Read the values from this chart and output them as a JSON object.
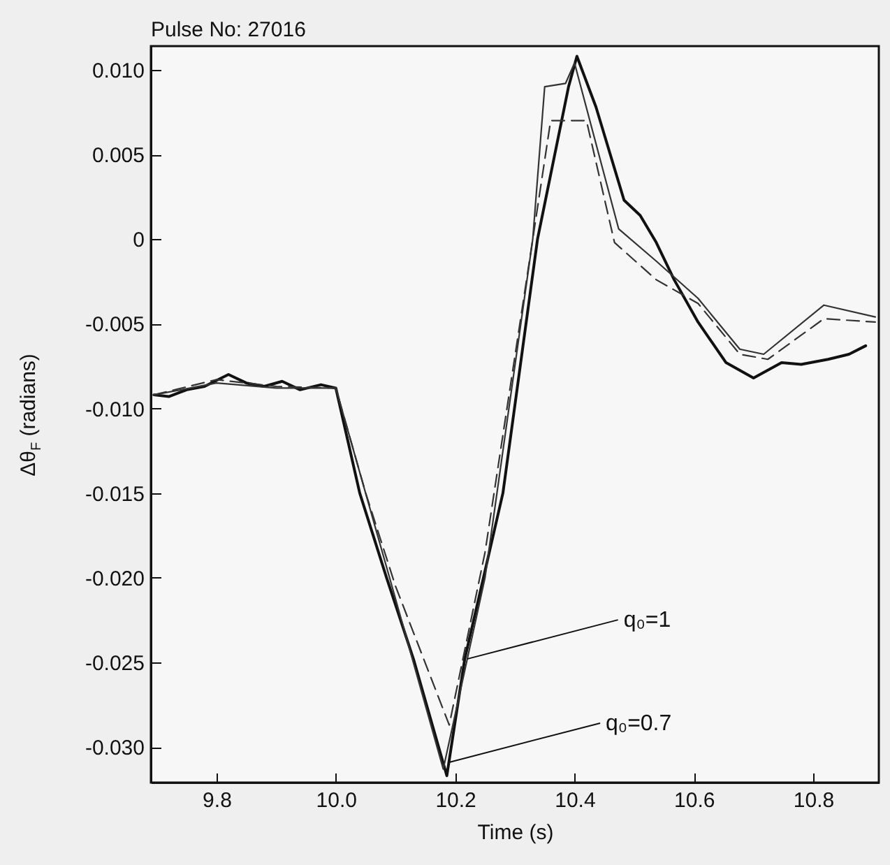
{
  "chart_data": {
    "type": "line",
    "title": "Pulse No: 27016",
    "xlabel": "Time (s)",
    "ylabel": "Δθ$_{F}$ (radians)",
    "xlim": [
      9.69,
      10.91
    ],
    "ylim": [
      -0.0321,
      0.0114
    ],
    "xticks": [
      9.8,
      {
        "value": 10,
        "label": "10.0"
      },
      10.2,
      10.4,
      10.6,
      10.8
    ],
    "yticks": [
      {
        "value": 0.01,
        "label": "0.010"
      },
      0.005,
      0,
      -0.005,
      {
        "value": -0.01,
        "label": "-0.010"
      },
      -0.015,
      {
        "value": -0.02,
        "label": "-0.020"
      },
      -0.025,
      {
        "value": -0.03,
        "label": "-0.030"
      }
    ],
    "annotations": [
      {
        "text": "q₀=1",
        "x": 10.22,
        "y": -0.0248
      },
      {
        "text": "q₀=0.7",
        "x": 10.19,
        "y": -0.0309
      }
    ],
    "series": [
      {
        "color": "#111111",
        "line_style": "solid",
        "x": [
          9.695,
          9.72,
          9.75,
          9.78,
          9.82,
          9.85,
          9.88,
          9.91,
          9.94,
          9.975,
          10.0,
          10.04,
          10.085,
          10.13,
          10.186,
          10.216,
          10.28,
          10.338,
          10.39,
          10.404,
          10.436,
          10.483,
          10.51,
          10.537,
          10.567,
          10.607,
          10.654,
          10.7,
          10.747,
          10.78,
          10.825,
          10.86,
          10.888
        ],
        "values": [
          -0.0092,
          -0.0093,
          -0.0089,
          -0.0087,
          -0.008,
          -0.0085,
          -0.0087,
          -0.0084,
          -0.0089,
          -0.0086,
          -0.0088,
          -0.015,
          -0.02,
          -0.0248,
          -0.0317,
          -0.0248,
          -0.015,
          0.0,
          0.009,
          0.0108,
          0.0078,
          0.0023,
          0.0014,
          -0.0002,
          -0.0024,
          -0.0049,
          -0.0073,
          -0.0082,
          -0.0073,
          -0.0074,
          -0.0071,
          -0.0068,
          -0.0063
        ]
      },
      {
        "color": "#333333",
        "line_style": "solid",
        "x": [
          9.695,
          9.8,
          9.9,
          10.0,
          10.09,
          10.18,
          10.25,
          10.33,
          10.35,
          10.385,
          10.4,
          10.474,
          10.537,
          10.607,
          10.677,
          10.717,
          10.818,
          10.904
        ],
        "values": [
          -0.0092,
          -0.0085,
          -0.0088,
          -0.0088,
          -0.02,
          -0.0313,
          -0.02,
          0.0,
          0.009,
          0.0092,
          0.0104,
          0.0006,
          -0.0013,
          -0.0035,
          -0.0065,
          -0.0068,
          -0.0039,
          -0.0046
        ]
      },
      {
        "color": "#333333",
        "line_style": "dashed",
        "x": [
          9.695,
          9.8,
          9.9,
          10.0,
          10.05,
          10.1,
          10.19,
          10.25,
          10.33,
          10.36,
          10.42,
          10.467,
          10.537,
          10.607,
          10.677,
          10.724,
          10.818,
          10.904
        ],
        "values": [
          -0.0092,
          -0.0083,
          -0.0087,
          -0.0088,
          -0.015,
          -0.0205,
          -0.0287,
          -0.0185,
          0.0,
          0.007,
          0.007,
          -0.0002,
          -0.0024,
          -0.0038,
          -0.0068,
          -0.0071,
          -0.0047,
          -0.0049
        ]
      }
    ]
  }
}
